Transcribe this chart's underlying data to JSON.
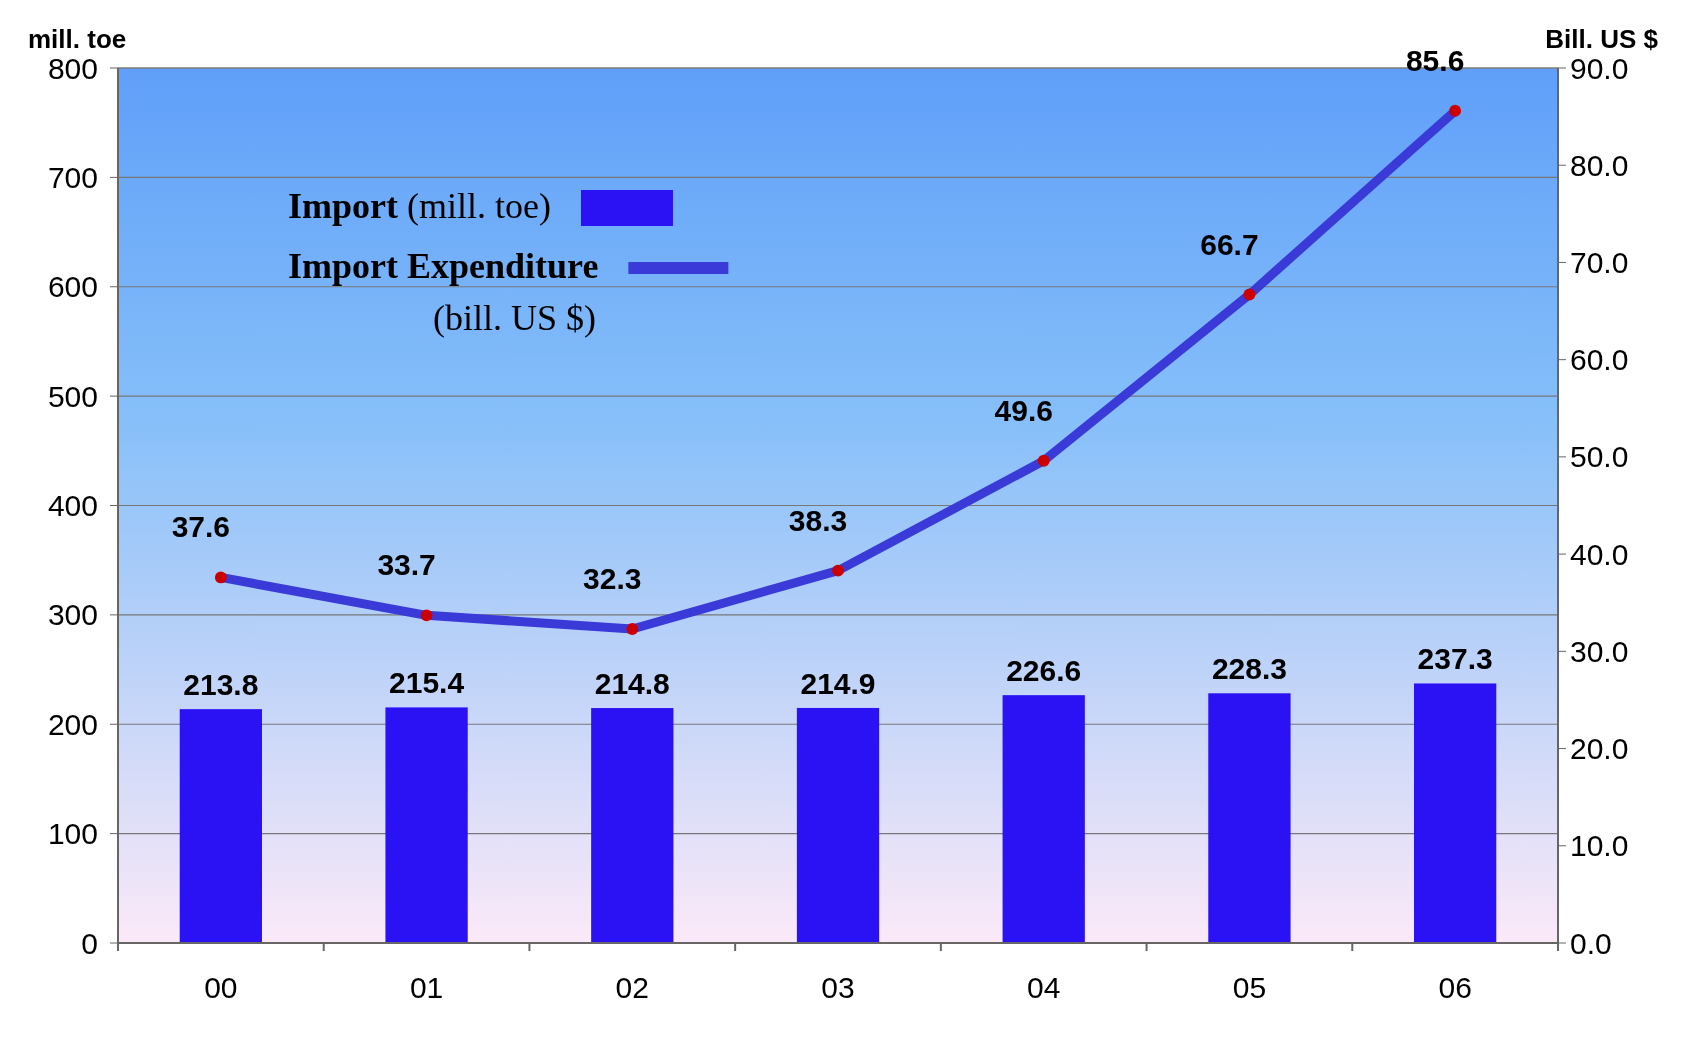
{
  "chart_data": {
    "type": "bar",
    "categories": [
      "00",
      "01",
      "02",
      "03",
      "04",
      "05",
      "06"
    ],
    "ylabel": "mill. toe",
    "y2label": "Bill. US $",
    "series": [
      {
        "name": "Import (mill. toe)",
        "color": "#2a12f5",
        "values": [
          213.8,
          215.4,
          214.8,
          214.9,
          226.6,
          228.3,
          237.3
        ]
      },
      {
        "name": "Import Expenditure (bill. US $)",
        "type": "line",
        "axis": "y2",
        "color": "#3a3ad8",
        "marker": "circle",
        "values": [
          37.6,
          33.7,
          32.3,
          38.3,
          49.6,
          66.7,
          85.6
        ]
      }
    ],
    "ylim": [
      0,
      800
    ],
    "yticks": [
      0,
      100,
      200,
      300,
      400,
      500,
      600,
      700,
      800
    ],
    "y2lim": [
      0,
      90
    ],
    "y2ticks": [
      {
        "value": 0,
        "label": "0.0"
      },
      {
        "value": 10,
        "label": "10.0"
      },
      {
        "value": 20,
        "label": "20.0"
      },
      {
        "value": 30,
        "label": "30.0"
      },
      {
        "value": 40,
        "label": "40.0"
      },
      {
        "value": 50,
        "label": "50.0"
      },
      {
        "value": 60,
        "label": "60.0"
      },
      {
        "value": 70,
        "label": "70.0"
      },
      {
        "value": 80,
        "label": "80.0"
      },
      {
        "value": 90,
        "label": "90.0"
      }
    ],
    "grid": "y",
    "legend": "top left",
    "data_labels": true
  }
}
